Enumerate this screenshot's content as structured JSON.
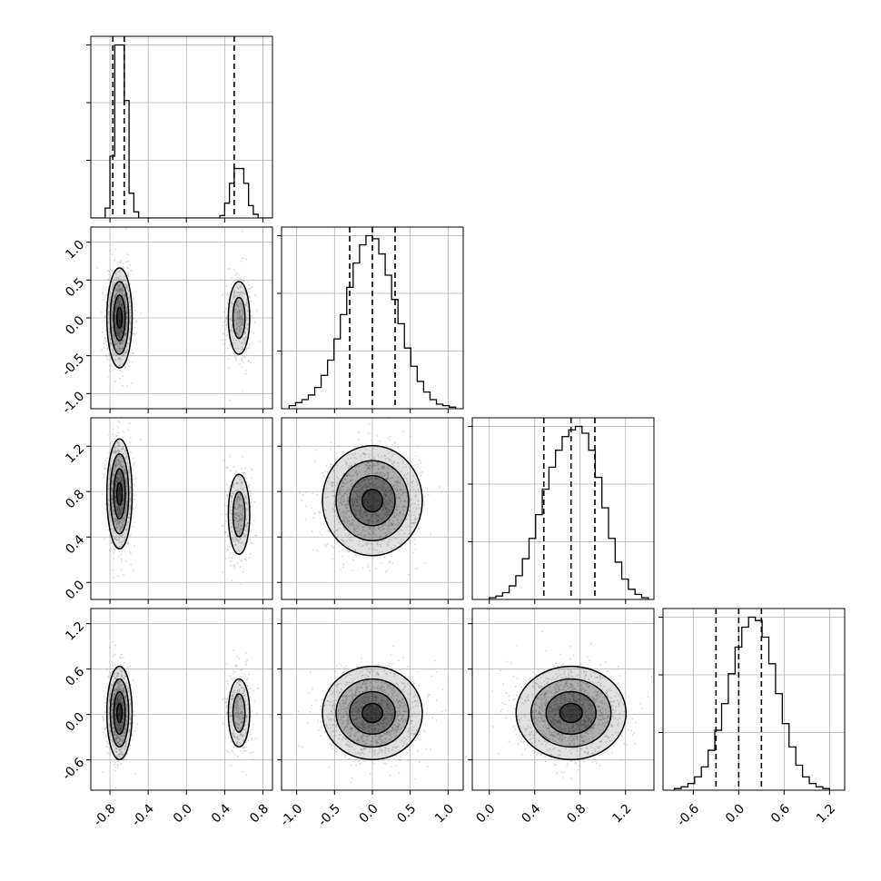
{
  "chart_data": {
    "type": "corner",
    "n_params": 4,
    "style": {
      "hist_color": "#000000",
      "grid_color": "#b0b0b0",
      "point_color": "#8c8c8c",
      "background": "#ffffff"
    },
    "params": [
      {
        "range": [
          -1.0,
          0.9
        ],
        "ticks": [
          "-0.8",
          "-0.4",
          "0.0",
          "0.4",
          "0.8"
        ],
        "tick_values": [
          -0.8,
          -0.4,
          0.0,
          0.4,
          0.8
        ],
        "quantiles": [
          -0.77,
          -0.65,
          0.5
        ],
        "hist_edges": [
          -1.0,
          0.9
        ],
        "hist_counts": [
          0,
          0,
          0,
          8,
          50,
          140,
          140,
          95,
          20,
          5,
          0,
          0,
          0,
          0,
          0,
          0,
          0,
          0,
          0,
          0,
          0,
          0,
          0,
          0,
          0,
          0,
          0,
          2,
          12,
          28,
          40,
          40,
          28,
          10,
          3,
          0,
          0,
          0
        ]
      },
      {
        "range": [
          -1.2,
          1.2
        ],
        "ticks": [
          "-1.0",
          "-0.5",
          "0.0",
          "0.5",
          "1.0"
        ],
        "tick_values": [
          -1.0,
          -0.5,
          0.0,
          0.5,
          1.0
        ],
        "quantiles": [
          -0.3,
          0.0,
          0.3
        ],
        "hist_edges": [
          -1.1,
          1.1
        ],
        "hist_counts": [
          2,
          4,
          6,
          9,
          14,
          22,
          32,
          46,
          62,
          80,
          96,
          108,
          114,
          112,
          102,
          88,
          72,
          56,
          40,
          28,
          18,
          11,
          6,
          3,
          2,
          1
        ]
      },
      {
        "range": [
          -0.15,
          1.45
        ],
        "ticks": [
          "0.0",
          "0.4",
          "0.8",
          "1.2"
        ],
        "tick_values": [
          0.0,
          0.4,
          0.8,
          1.2
        ],
        "quantiles": [
          0.48,
          0.72,
          0.93
        ],
        "hist_edges": [
          0.0,
          1.4
        ],
        "hist_counts": [
          1,
          2,
          4,
          8,
          14,
          24,
          36,
          50,
          65,
          78,
          88,
          96,
          100,
          102,
          98,
          88,
          72,
          54,
          36,
          22,
          12,
          6,
          3,
          1
        ]
      },
      {
        "range": [
          -1.0,
          1.4
        ],
        "ticks": [
          "-0.6",
          "0.0",
          "0.6",
          "1.2"
        ],
        "tick_values": [
          -0.6,
          0.0,
          0.6,
          1.2
        ],
        "quantiles": [
          -0.3,
          0.0,
          0.3
        ],
        "hist_edges": [
          -0.85,
          1.2
        ],
        "hist_counts": [
          1,
          2,
          4,
          8,
          14,
          24,
          36,
          52,
          70,
          86,
          98,
          104,
          102,
          92,
          76,
          58,
          40,
          26,
          15,
          8,
          4,
          2,
          1
        ]
      }
    ],
    "x_tick_labels_rotated": true,
    "y_tick_labels_rotated": true,
    "axis_labels": [],
    "title": "",
    "grid": true
  }
}
